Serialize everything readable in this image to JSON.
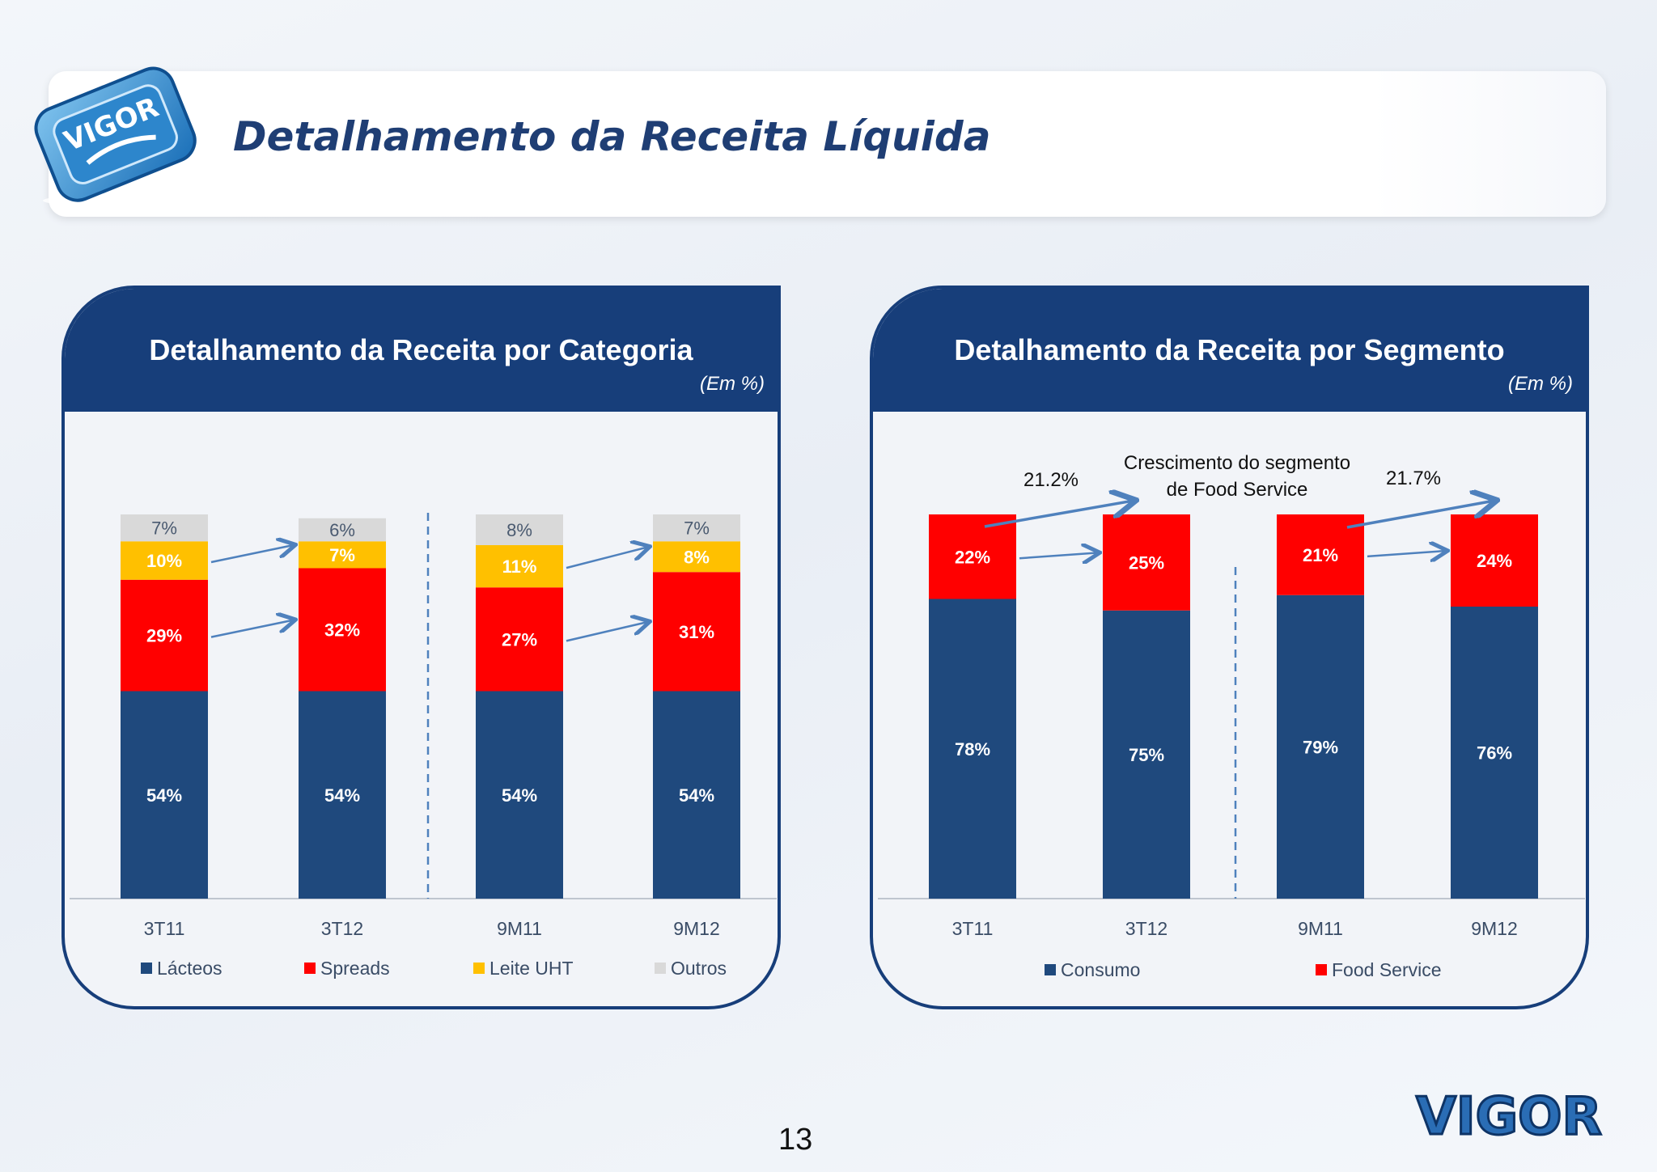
{
  "slide": {
    "title": "Detalhamento da Receita Líquida",
    "page_number": "13",
    "brand": "VIGOR",
    "product_label": "VIGOR"
  },
  "colors": {
    "dark_blue": "#1f497d",
    "red": "#ff0000",
    "yellow": "#ffc000",
    "gray": "#d9d9d9",
    "header": "#173e7a",
    "arrow": "#4f81bd"
  },
  "chart_data": [
    {
      "type": "bar",
      "stacked": true,
      "title": "Detalhamento da Receita por Categoria",
      "unit_note": "(Em %)",
      "categories": [
        "3T11",
        "3T12",
        "9M11",
        "9M12"
      ],
      "series": [
        {
          "name": "Lácteos",
          "color": "#1f497d",
          "values": [
            54,
            54,
            54,
            54
          ],
          "labels": [
            "54%",
            "54%",
            "54%",
            "54%"
          ]
        },
        {
          "name": "Spreads",
          "color": "#ff0000",
          "values": [
            29,
            32,
            27,
            31
          ],
          "labels": [
            "29%",
            "32%",
            "27%",
            "31%"
          ]
        },
        {
          "name": "Leite UHT",
          "color": "#ffc000",
          "values": [
            10,
            7,
            11,
            8
          ],
          "labels": [
            "10%",
            "7%",
            "11%",
            "8%"
          ]
        },
        {
          "name": "Outros",
          "color": "#d9d9d9",
          "values": [
            7,
            6,
            8,
            7
          ],
          "labels": [
            "7%",
            "6%",
            "8%",
            "7%"
          ]
        }
      ],
      "legend_position": "bottom",
      "divider_after_category": 1
    },
    {
      "type": "bar",
      "stacked": true,
      "title": "Detalhamento da Receita por Segmento",
      "unit_note": "(Em %)",
      "categories": [
        "3T11",
        "3T12",
        "9M11",
        "9M12"
      ],
      "series": [
        {
          "name": "Consumo",
          "color": "#1f497d",
          "values": [
            78,
            75,
            79,
            76
          ],
          "labels": [
            "78%",
            "75%",
            "79%",
            "76%"
          ]
        },
        {
          "name": "Food Service",
          "color": "#ff0000",
          "values": [
            22,
            25,
            21,
            24
          ],
          "labels": [
            "22%",
            "25%",
            "21%",
            "24%"
          ]
        }
      ],
      "legend_position": "bottom",
      "divider_after_category": 1,
      "annotations": {
        "growth_text_line1": "Crescimento do segmento",
        "growth_text_line2": "de Food Service",
        "growth_quarter": "21.2%",
        "growth_nine_months": "21.7%"
      }
    }
  ]
}
